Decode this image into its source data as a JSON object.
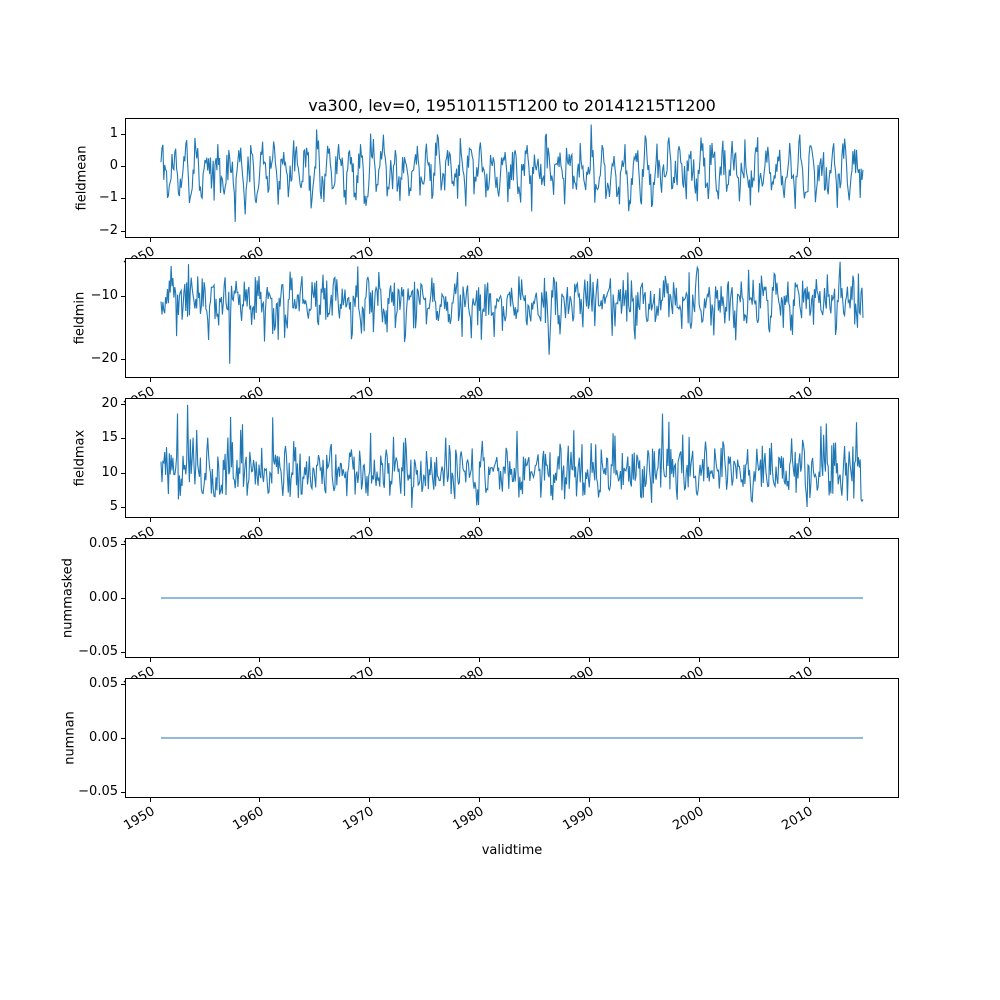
{
  "figure": {
    "background": "#ffffff",
    "text_color": "#000000"
  },
  "chart_data": {
    "type": "line",
    "title": "va300, lev=0, 19510115T1200 to 20141215T1200",
    "xlabel": "validtime",
    "line_color": "#1f77b4",
    "grid": false,
    "legend": "none",
    "x_limits": [
      1947.85,
      2018.15
    ],
    "x_ticks": {
      "values": [
        1950,
        1960,
        1970,
        1980,
        1990,
        2000,
        2010
      ],
      "labels": [
        "1950",
        "1960",
        "1970",
        "1980",
        "1990",
        "2000",
        "2010"
      ],
      "rotation_deg": 30
    },
    "x_series": {
      "start": 1951.0417,
      "step": 0.0833333,
      "n_points": 768,
      "start_label": "19510115T1200",
      "end_label": "20141215T1200",
      "cadence": "monthly"
    },
    "subplots": [
      {
        "ylabel": "fieldmean",
        "y_limits": [
          -2.2,
          1.45
        ],
        "y_ticks": {
          "values": [
            1,
            0,
            -1,
            -2
          ],
          "labels": [
            "1",
            "0",
            "−1",
            "−2"
          ]
        },
        "series": {
          "kind": "seasonal_noise",
          "seed": 101,
          "mean": -0.15,
          "seasonal_amplitude": 0.55,
          "noise_sd": 0.33,
          "phase": 0.4,
          "spike_probability": 0.02,
          "spike_sign": -1,
          "spike_magnitude": 0.6,
          "clip_min": -2.03,
          "clip_max": 1.28
        }
      },
      {
        "ylabel": "fieldmin",
        "y_limits": [
          -22.8,
          -4.05
        ],
        "y_ticks": {
          "values": [
            -10,
            -20
          ],
          "labels": [
            "−10",
            "−20"
          ]
        },
        "series": {
          "kind": "seasonal_noise",
          "seed": 202,
          "mean": -10.6,
          "seasonal_amplitude": 1.4,
          "noise_sd": 2.0,
          "phase": 2.8,
          "spike_probability": 0.03,
          "spike_sign": -1,
          "spike_magnitude": 4.5,
          "clip_min": -22.6,
          "clip_max": -4.5
        }
      },
      {
        "ylabel": "fieldmax",
        "y_limits": [
          3.57,
          20.71
        ],
        "y_ticks": {
          "values": [
            20,
            15,
            10,
            5
          ],
          "labels": [
            "20",
            "15",
            "10",
            "5"
          ]
        },
        "series": {
          "kind": "seasonal_noise",
          "seed": 303,
          "mean": 10.1,
          "seasonal_amplitude": 1.2,
          "noise_sd": 1.9,
          "phase": 5.9,
          "spike_probability": 0.03,
          "spike_sign": 1,
          "spike_magnitude": 4.0,
          "clip_min": 4.6,
          "clip_max": 19.9
        }
      },
      {
        "ylabel": "nummasked",
        "y_limits": [
          -0.055,
          0.055
        ],
        "y_ticks": {
          "values": [
            0.05,
            0,
            -0.05
          ],
          "labels": [
            "0.05",
            "0.00",
            "−0.05"
          ]
        },
        "series": {
          "kind": "constant",
          "value": 0
        }
      },
      {
        "ylabel": "numnan",
        "y_limits": [
          -0.055,
          0.055
        ],
        "y_ticks": {
          "values": [
            0.05,
            0,
            -0.05
          ],
          "labels": [
            "0.05",
            "0.00",
            "−0.05"
          ]
        },
        "series": {
          "kind": "constant",
          "value": 0
        }
      }
    ]
  }
}
